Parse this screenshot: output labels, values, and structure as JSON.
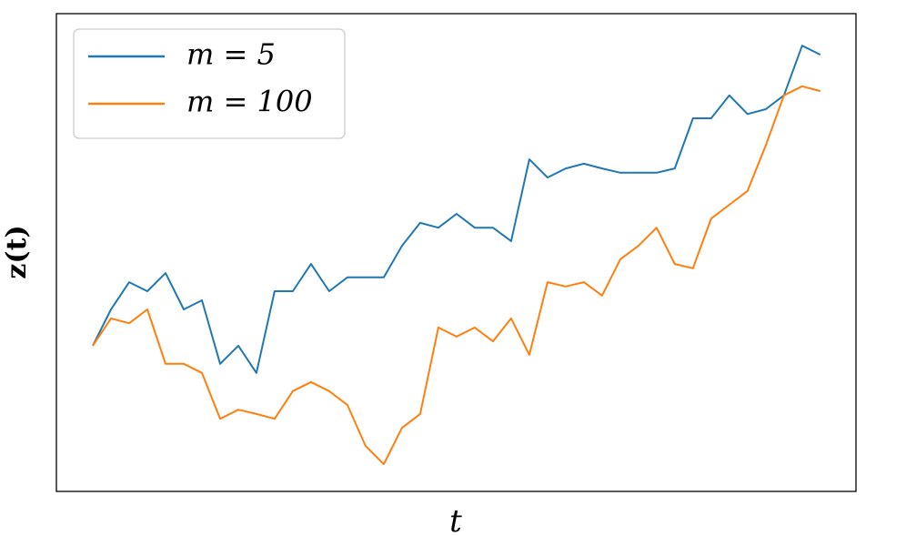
{
  "chart_data": {
    "type": "line",
    "xlabel": "t",
    "ylabel": "z(t)",
    "x": [
      0,
      2.5,
      5,
      7.5,
      10,
      12.5,
      15,
      17.5,
      20,
      22.5,
      25,
      27.5,
      30,
      32.5,
      35,
      37.5,
      40,
      42.5,
      45,
      47.5,
      50,
      52.5,
      55,
      57.5,
      60,
      62.5,
      65,
      67.5,
      70,
      72.5,
      75,
      77.5,
      80,
      82.5,
      85,
      87.5,
      90,
      92.5,
      95,
      97.5,
      100
    ],
    "xlim": [
      -5,
      104.9
    ],
    "ylim": [
      0,
      100
    ],
    "legend": "upper left",
    "series": [
      {
        "name": "m = 5",
        "color": "#1f77b4",
        "values": [
          30.5,
          38.1,
          43.8,
          41.9,
          45.7,
          38.1,
          40.0,
          26.7,
          30.5,
          24.8,
          41.9,
          41.9,
          47.6,
          41.9,
          44.8,
          44.8,
          44.8,
          51.4,
          56.2,
          55.2,
          58.1,
          55.2,
          55.2,
          52.4,
          69.5,
          65.7,
          67.6,
          68.6,
          67.6,
          66.7,
          66.7,
          66.7,
          67.6,
          78.1,
          78.1,
          82.9,
          79.0,
          80.0,
          82.9,
          93.3,
          91.4
        ]
      },
      {
        "name": "m = 100",
        "color": "#ff7f0e",
        "values": [
          30.5,
          36.2,
          35.2,
          38.1,
          26.7,
          26.7,
          24.8,
          15.2,
          17.1,
          16.2,
          15.2,
          21.0,
          22.9,
          21.0,
          18.1,
          9.5,
          5.7,
          13.3,
          16.2,
          34.3,
          32.4,
          34.3,
          31.4,
          36.2,
          28.6,
          43.8,
          42.9,
          43.8,
          41.0,
          48.6,
          51.4,
          55.2,
          47.6,
          46.7,
          57.1,
          60.0,
          62.9,
          72.4,
          82.9,
          84.8,
          83.8
        ]
      }
    ]
  }
}
